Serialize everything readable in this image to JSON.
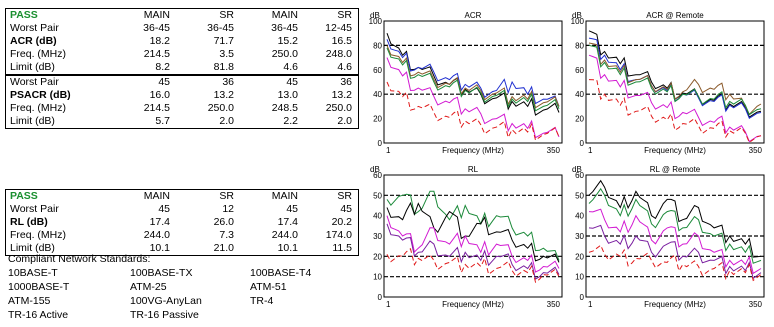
{
  "table1": {
    "rows": [
      {
        "label": "PASS",
        "v": [
          "MAIN",
          "SR",
          "MAIN",
          "SR"
        ]
      },
      {
        "label": "Worst Pair",
        "v": [
          "36-45",
          "36-45",
          "36-45",
          "12-45"
        ]
      },
      {
        "label": "ACR (dB)",
        "v": [
          "18.2",
          "71.7",
          "15.2",
          "16.5"
        ]
      },
      {
        "label": "Freq. (MHz)",
        "v": [
          "214.5",
          "3.5",
          "250.0",
          "248.0"
        ]
      },
      {
        "label": "Limit (dB)",
        "v": [
          "8.2",
          "81.8",
          "4.6",
          "4.6"
        ]
      },
      {
        "label": "Worst Pair",
        "v": [
          "45",
          "36",
          "45",
          "36"
        ]
      },
      {
        "label": "PSACR (dB)",
        "v": [
          "16.0",
          "13.2",
          "13.0",
          "13.2"
        ]
      },
      {
        "label": "Freq. (MHz)",
        "v": [
          "214.5",
          "250.0",
          "248.5",
          "250.0"
        ]
      },
      {
        "label": "Limit (dB)",
        "v": [
          "5.7",
          "2.0",
          "2.2",
          "2.0"
        ]
      }
    ]
  },
  "table2": {
    "rows": [
      {
        "label": "PASS",
        "v": [
          "MAIN",
          "SR",
          "MAIN",
          "SR"
        ]
      },
      {
        "label": "Worst Pair",
        "v": [
          "45",
          "12",
          "45",
          "45"
        ]
      },
      {
        "label": "RL (dB)",
        "v": [
          "17.4",
          "26.0",
          "17.4",
          "20.2"
        ]
      },
      {
        "label": "Freq. (MHz)",
        "v": [
          "244.0",
          "7.3",
          "244.0",
          "174.0"
        ]
      },
      {
        "label": "Limit (dB)",
        "v": [
          "10.1",
          "21.0",
          "10.1",
          "11.5"
        ]
      }
    ]
  },
  "standards": {
    "title": "Compliant Network Standards:",
    "items": [
      "10BASE-T",
      "100BASE-TX",
      "100BASE-T4",
      "1000BASE-T",
      "ATM-25",
      "ATM-51",
      "ATM-155",
      "100VG-AnyLan",
      "TR-4",
      "TR-16 Active",
      "TR-16 Passive"
    ]
  },
  "colors": {
    "pass": "#1a8f2f",
    "black": "#000000",
    "blue": "#1f2fd0",
    "magenta": "#d21ad2",
    "brown": "#8b5a2b",
    "green": "#1c8a3a",
    "red": "#e01818",
    "purple": "#7a1fa0"
  },
  "chart_data": [
    {
      "type": "line",
      "title": "ACR",
      "unit": "dB",
      "xlabel": "Frequency (MHz)",
      "x_ticks": [
        "1",
        "350"
      ],
      "y_ticks": [
        "0",
        "20",
        "40",
        "60",
        "80",
        "100"
      ],
      "ylim": [
        0,
        100
      ],
      "xlim": [
        1,
        350
      ],
      "limit_lines": [
        {
          "name": "dashed",
          "values": [
            80,
            40
          ]
        }
      ],
      "series": [
        {
          "color": "black",
          "values": [
            90,
            72,
            62,
            55,
            48,
            44,
            40,
            37,
            34,
            30,
            27,
            25
          ]
        },
        {
          "color": "blue",
          "values": [
            85,
            70,
            62,
            58,
            52,
            48,
            45,
            43,
            50,
            40,
            36,
            30
          ]
        },
        {
          "color": "brown",
          "values": [
            80,
            66,
            58,
            52,
            48,
            45,
            43,
            41,
            38,
            36,
            33,
            30
          ]
        },
        {
          "color": "green",
          "values": [
            78,
            64,
            56,
            50,
            46,
            43,
            41,
            39,
            36,
            34,
            30,
            28
          ]
        },
        {
          "color": "magenta",
          "values": [
            70,
            55,
            45,
            38,
            33,
            28,
            24,
            20,
            16,
            12,
            8,
            5
          ]
        },
        {
          "color": "red",
          "values": [
            50,
            38,
            30,
            25,
            21,
            18,
            15,
            13,
            11,
            9,
            7,
            5
          ]
        }
      ]
    },
    {
      "type": "line",
      "title": "ACR @ Remote",
      "unit": "dB",
      "xlabel": "Frequency (MHz)",
      "x_ticks": [
        "1",
        "350"
      ],
      "y_ticks": [
        "0",
        "20",
        "40",
        "60",
        "80",
        "100"
      ],
      "ylim": [
        0,
        100
      ],
      "xlim": [
        1,
        350
      ],
      "limit_lines": [
        {
          "name": "dashed",
          "values": [
            80,
            40
          ]
        }
      ],
      "series": [
        {
          "color": "black",
          "values": [
            92,
            75,
            65,
            56,
            50,
            45,
            41,
            38,
            35,
            32,
            29,
            26
          ]
        },
        {
          "color": "blue",
          "values": [
            86,
            72,
            60,
            52,
            47,
            43,
            40,
            37,
            34,
            31,
            28,
            25
          ]
        },
        {
          "color": "brown",
          "values": [
            82,
            68,
            58,
            52,
            47,
            44,
            42,
            48,
            44,
            40,
            30,
            32
          ]
        },
        {
          "color": "green",
          "values": [
            80,
            66,
            56,
            50,
            45,
            42,
            40,
            38,
            36,
            34,
            31,
            28
          ]
        },
        {
          "color": "magenta",
          "values": [
            72,
            56,
            46,
            39,
            33,
            29,
            25,
            21,
            17,
            13,
            9,
            6
          ]
        },
        {
          "color": "red",
          "values": [
            52,
            40,
            31,
            26,
            22,
            19,
            16,
            14,
            12,
            10,
            8,
            6
          ]
        }
      ]
    },
    {
      "type": "line",
      "title": "RL",
      "unit": "dB",
      "xlabel": "Frequency (MHz)",
      "x_ticks": [
        "1",
        "350"
      ],
      "y_ticks": [
        "0",
        "10",
        "20",
        "30",
        "40",
        "50",
        "60"
      ],
      "ylim": [
        0,
        60
      ],
      "xlim": [
        1,
        350
      ],
      "limit_lines": [
        {
          "name": "dashed",
          "values": [
            50,
            20,
            10
          ]
        }
      ],
      "series": [
        {
          "color": "green",
          "values": [
            48,
            50,
            42,
            52,
            38,
            45,
            36,
            40,
            34,
            30,
            24,
            18
          ]
        },
        {
          "color": "black",
          "values": [
            44,
            38,
            46,
            34,
            42,
            30,
            36,
            32,
            28,
            24,
            20,
            17
          ]
        },
        {
          "color": "magenta",
          "values": [
            40,
            30,
            24,
            34,
            26,
            30,
            22,
            26,
            20,
            18,
            15,
            14
          ]
        },
        {
          "color": "purple",
          "values": [
            36,
            28,
            22,
            26,
            20,
            22,
            18,
            20,
            16,
            14,
            12,
            11
          ]
        },
        {
          "color": "red",
          "values": [
            21,
            20,
            19,
            18,
            17,
            16,
            15,
            14,
            13,
            12,
            11,
            10
          ]
        }
      ]
    },
    {
      "type": "line",
      "title": "RL @ Remote",
      "unit": "dB",
      "xlabel": "Frequency (MHz)",
      "x_ticks": [
        "1",
        "350"
      ],
      "y_ticks": [
        "0",
        "10",
        "20",
        "30",
        "40",
        "50",
        "60"
      ],
      "ylim": [
        0,
        60
      ],
      "xlim": [
        1,
        350
      ],
      "limit_lines": [
        {
          "name": "dashed",
          "values": [
            50,
            30,
            20,
            10
          ]
        }
      ],
      "series": [
        {
          "color": "black",
          "values": [
            50,
            54,
            44,
            52,
            40,
            48,
            38,
            44,
            34,
            30,
            26,
            20
          ]
        },
        {
          "color": "green",
          "values": [
            46,
            50,
            40,
            48,
            36,
            42,
            34,
            38,
            30,
            26,
            22,
            18
          ]
        },
        {
          "color": "magenta",
          "values": [
            42,
            38,
            32,
            40,
            28,
            34,
            26,
            30,
            22,
            18,
            16,
            14
          ]
        },
        {
          "color": "purple",
          "values": [
            34,
            30,
            26,
            30,
            22,
            26,
            20,
            22,
            18,
            15,
            13,
            12
          ]
        },
        {
          "color": "red",
          "values": [
            22,
            21,
            20,
            19,
            18,
            17,
            16,
            15,
            14,
            13,
            12,
            11
          ]
        }
      ]
    }
  ]
}
